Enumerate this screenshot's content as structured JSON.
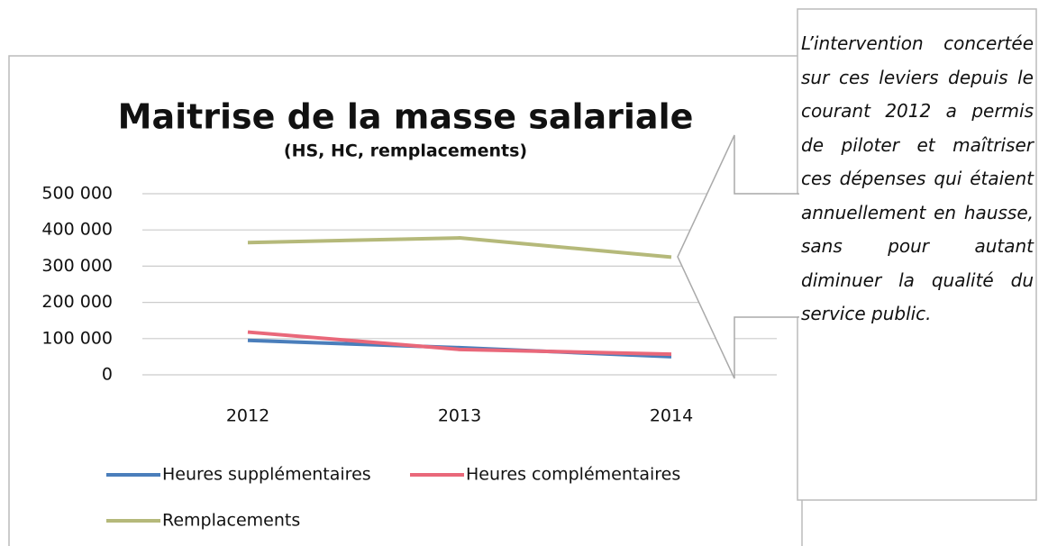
{
  "chart_data": {
    "type": "line",
    "title": "Maitrise de la masse salariale",
    "subtitle": "(HS, HC, remplacements)",
    "categories": [
      "2012",
      "2013",
      "2014"
    ],
    "series": [
      {
        "name": "Heures supplémentaires",
        "color": "#4a7ebb",
        "values": [
          95000,
          75000,
          50000
        ]
      },
      {
        "name": "Heures complémentaires",
        "color": "#e9687a",
        "values": [
          118000,
          70000,
          57000
        ]
      },
      {
        "name": "Remplacements",
        "color": "#b5b97a",
        "values": [
          365000,
          378000,
          325000
        ]
      }
    ],
    "ylim": [
      0,
      500000
    ],
    "yticks": [
      0,
      {
        "value": 100000,
        "label": "100 000"
      },
      {
        "value": 200000,
        "label": "200 000"
      },
      {
        "value": 300000,
        "label": "300 000"
      },
      {
        "value": 400000,
        "label": "400 000"
      },
      {
        "value": 500000,
        "label": "500 000"
      }
    ],
    "grid": true,
    "legend": "bottom",
    "annotation": "L’intervention concertée sur ces leviers depuis le courant 2012 a permis de piloter et maîtriser ces dépenses qui étaient annuellement en hausse, sans pour autant diminuer la qualité du service public."
  }
}
